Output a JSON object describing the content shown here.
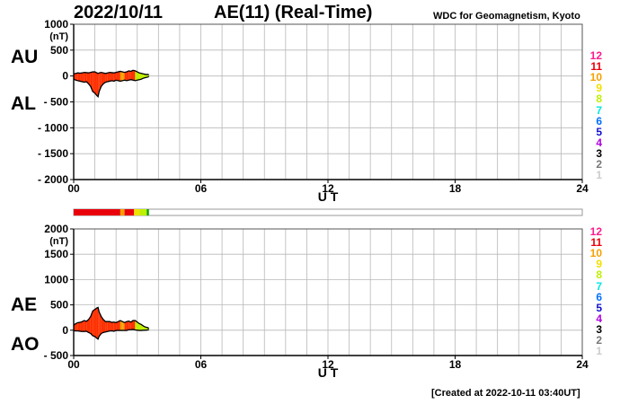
{
  "header": {
    "date": "2022/10/11",
    "index_title": "AE(11) (Real-Time)",
    "credit": "WDC for Geomagnetism, Kyoto"
  },
  "footer": {
    "created": "[Created at 2022-10-11 03:40UT]"
  },
  "activity_levels": {
    "labels": [
      "12",
      "11",
      "10",
      "9",
      "8",
      "7",
      "6",
      "5",
      "4",
      "3",
      "2",
      "1"
    ],
    "colors": [
      "#ff1a8c",
      "#e8000b",
      "#f5a000",
      "#f2e000",
      "#bff000",
      "#00e8e0",
      "#0070ff",
      "#1010d0",
      "#b000e0",
      "#000000",
      "#777777",
      "#cccccc"
    ]
  },
  "chart_data": [
    {
      "type": "area",
      "series_labels": [
        "AU",
        "AL"
      ],
      "xlabel": "U T",
      "ylabel_unit": "(nT)",
      "x_ticks": [
        "00",
        "06",
        "12",
        "18",
        "24"
      ],
      "y_ticks": [
        "1000",
        "500",
        "0",
        "- 500",
        "- 1000",
        "- 1500",
        "- 2000"
      ],
      "xlim": [
        0,
        24
      ],
      "ylim": [
        -2000,
        1000
      ],
      "grid": true,
      "fill_color": "#ff3000",
      "x": [
        0,
        0.1,
        0.2,
        0.3,
        0.4,
        0.5,
        0.6,
        0.7,
        0.8,
        0.9,
        1.0,
        1.1,
        1.15,
        1.2,
        1.3,
        1.4,
        1.5,
        1.6,
        1.7,
        1.8,
        1.9,
        2.0,
        2.1,
        2.2,
        2.3,
        2.4,
        2.5,
        2.6,
        2.7,
        2.8,
        2.9,
        3.0,
        3.1,
        3.2,
        3.3,
        3.4,
        3.5,
        3.55
      ],
      "au": [
        40,
        50,
        60,
        55,
        60,
        70,
        65,
        60,
        70,
        80,
        80,
        60,
        50,
        60,
        70,
        60,
        50,
        60,
        70,
        65,
        60,
        70,
        80,
        90,
        80,
        70,
        80,
        100,
        90,
        110,
        100,
        80,
        60,
        50,
        40,
        30,
        30,
        20
      ],
      "al": [
        -60,
        -80,
        -90,
        -100,
        -110,
        -120,
        -110,
        -150,
        -200,
        -300,
        -330,
        -380,
        -400,
        -300,
        -200,
        -150,
        -120,
        -110,
        -100,
        -90,
        -100,
        -80,
        -90,
        -100,
        -90,
        -80,
        -90,
        -80,
        -70,
        -80,
        -90,
        -80,
        -70,
        -60,
        -40,
        -30,
        -20,
        -10
      ]
    },
    {
      "type": "area",
      "series_labels": [
        "AE",
        "AO"
      ],
      "xlabel": "U T",
      "ylabel_unit": "(nT)",
      "x_ticks": [
        "00",
        "06",
        "12",
        "18",
        "24"
      ],
      "y_ticks": [
        "2000",
        "1500",
        "1000",
        "500",
        "0",
        "- 500"
      ],
      "xlim": [
        0,
        24
      ],
      "ylim": [
        -500,
        2000
      ],
      "grid": true,
      "fill_color": "#ff3000",
      "x": [
        0,
        0.1,
        0.2,
        0.3,
        0.4,
        0.5,
        0.6,
        0.7,
        0.8,
        0.9,
        1.0,
        1.1,
        1.15,
        1.2,
        1.3,
        1.4,
        1.5,
        1.6,
        1.7,
        1.8,
        1.9,
        2.0,
        2.1,
        2.2,
        2.3,
        2.4,
        2.5,
        2.6,
        2.7,
        2.8,
        2.9,
        3.0,
        3.1,
        3.2,
        3.3,
        3.4,
        3.5,
        3.55
      ],
      "ae": [
        100,
        130,
        150,
        155,
        170,
        190,
        175,
        210,
        270,
        380,
        410,
        440,
        450,
        360,
        270,
        210,
        170,
        170,
        170,
        155,
        160,
        150,
        170,
        190,
        170,
        150,
        170,
        180,
        160,
        190,
        190,
        160,
        130,
        110,
        80,
        60,
        50,
        30
      ],
      "ao": [
        -10,
        -15,
        -15,
        -20,
        -25,
        -25,
        -20,
        -45,
        -65,
        -110,
        -125,
        -160,
        -175,
        -120,
        -65,
        -45,
        -35,
        -25,
        -15,
        -12,
        -20,
        -5,
        -5,
        -5,
        -5,
        -5,
        -5,
        10,
        10,
        15,
        5,
        0,
        -5,
        -5,
        0,
        0,
        5,
        5
      ]
    }
  ],
  "activity_bar": {
    "segments": [
      {
        "start": 0.0,
        "end": 2.2,
        "color": "#e8000b"
      },
      {
        "start": 2.2,
        "end": 2.4,
        "color": "#f5a000"
      },
      {
        "start": 2.4,
        "end": 2.85,
        "color": "#e8000b"
      },
      {
        "start": 2.85,
        "end": 3.1,
        "color": "#f2e000"
      },
      {
        "start": 3.1,
        "end": 3.45,
        "color": "#bff000"
      },
      {
        "start": 3.45,
        "end": 3.55,
        "color": "#00a000"
      }
    ]
  },
  "segment_colors": [
    {
      "start": 0.0,
      "end": 2.2,
      "color": "#ff3000"
    },
    {
      "start": 2.2,
      "end": 2.4,
      "color": "#f5a000"
    },
    {
      "start": 2.4,
      "end": 2.85,
      "color": "#ff3000"
    },
    {
      "start": 2.85,
      "end": 3.55,
      "color": "#bff000"
    }
  ]
}
